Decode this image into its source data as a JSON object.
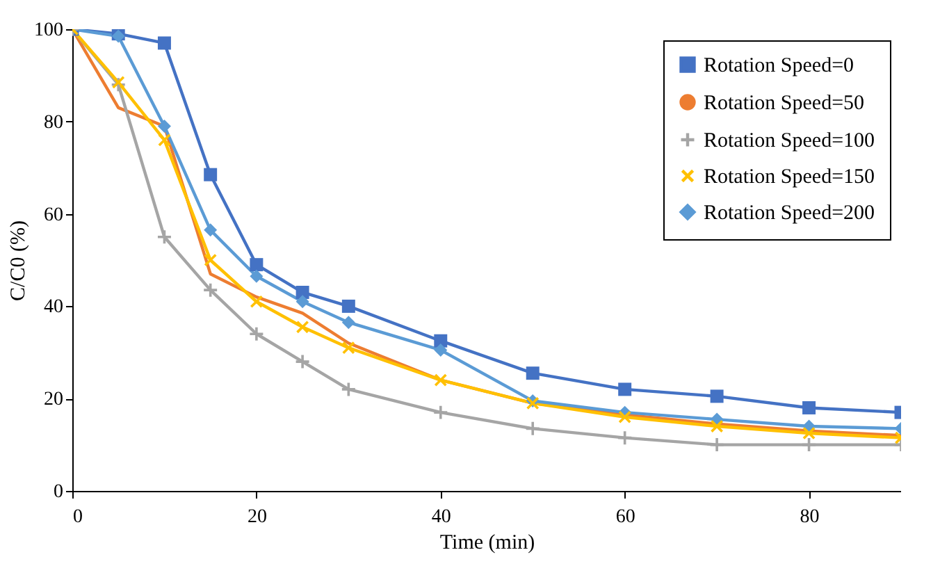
{
  "chart_data": {
    "type": "line",
    "xlabel": "Time (min)",
    "ylabel": "C/C0 (%)",
    "x": [
      0,
      5,
      10,
      15,
      20,
      25,
      30,
      40,
      50,
      60,
      70,
      80,
      90
    ],
    "xlim": [
      0,
      90
    ],
    "xticks": [
      0,
      20,
      40,
      60,
      80
    ],
    "ylim": [
      0,
      100
    ],
    "yticks": [
      0,
      20,
      40,
      60,
      80,
      100
    ],
    "grid": false,
    "legend": "top right",
    "line_style": "solid",
    "series": [
      {
        "name": "Rotation Speed=0",
        "color": "#4472c4",
        "marker": "square",
        "values": [
          100,
          99,
          97,
          68.5,
          49,
          43,
          40,
          32.5,
          25.5,
          22,
          20.5,
          18,
          17
        ]
      },
      {
        "name": "Rotation Speed=50",
        "color": "#ed7d31",
        "marker": "none",
        "values": [
          100,
          83,
          79,
          47,
          42,
          38.5,
          32,
          24,
          19,
          16.5,
          14.5,
          13,
          12
        ]
      },
      {
        "name": "Rotation Speed=100",
        "color": "#a5a5a5",
        "marker": "cross",
        "values": [
          100,
          88,
          55,
          43.5,
          34,
          28,
          22,
          17,
          13.5,
          11.5,
          10,
          10,
          10
        ]
      },
      {
        "name": "Rotation Speed=150",
        "color": "#ffc000",
        "marker": "x",
        "values": [
          100,
          88.5,
          76,
          50,
          41,
          35.5,
          31,
          24,
          19,
          16,
          14,
          12.5,
          11.5
        ]
      },
      {
        "name": "Rotation Speed=200",
        "color": "#5b9bd5",
        "marker": "diamond",
        "values": [
          100,
          98.5,
          79,
          56.5,
          46.5,
          41,
          36.5,
          30.5,
          19.5,
          17,
          15.5,
          14,
          13.5
        ]
      }
    ]
  }
}
